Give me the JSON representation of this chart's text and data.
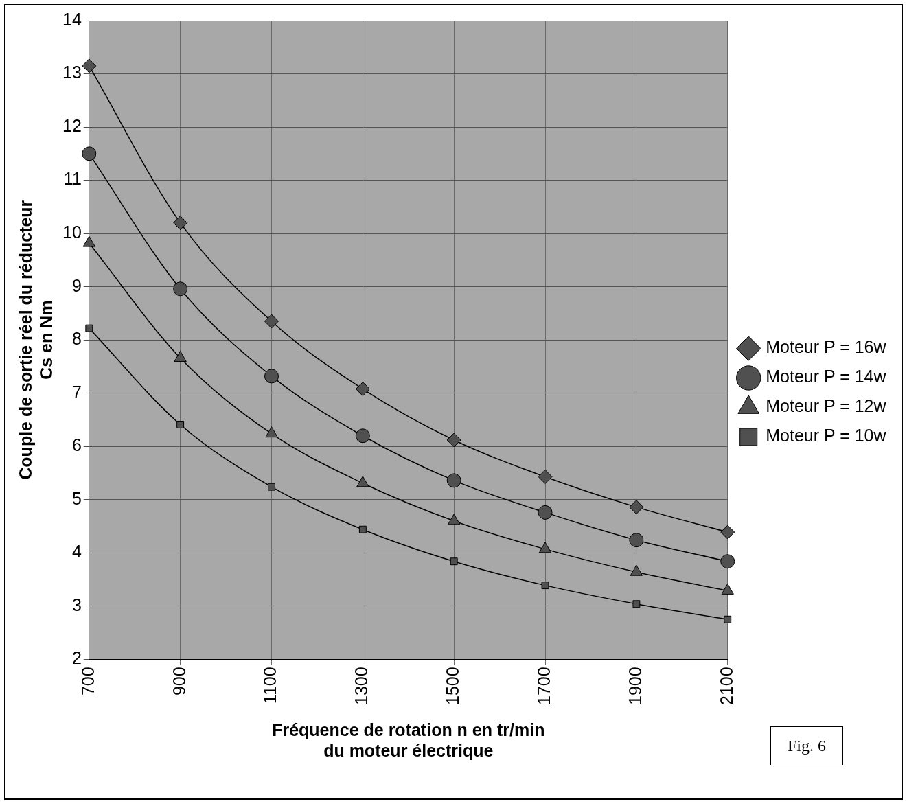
{
  "chart_data": {
    "type": "line",
    "xlabel": "Fréquence de rotation n en tr/min\ndu moteur électrique",
    "ylabel": "Couple de sortie réel du réducteur\nCs en Nm",
    "categories": [
      "700",
      "900",
      "1100",
      "1300",
      "1500",
      "1700",
      "1900",
      "2100"
    ],
    "series": [
      {
        "name": "Moteur P = 16w",
        "color": "#000000",
        "marker": "diamond",
        "values": [
          13.15,
          10.2,
          8.35,
          7.08,
          6.12,
          5.43,
          4.86,
          4.39
        ]
      },
      {
        "name": "Moteur P = 14w",
        "color": "#000000",
        "marker": "circle",
        "values": [
          11.5,
          8.96,
          7.32,
          6.2,
          5.36,
          4.76,
          4.24,
          3.84
        ]
      },
      {
        "name": "Moteur P = 12w",
        "color": "#000000",
        "marker": "triangle",
        "values": [
          9.82,
          7.66,
          6.24,
          5.31,
          4.6,
          4.07,
          3.64,
          3.29
        ]
      },
      {
        "name": "Moteur P = 10w",
        "color": "#000000",
        "marker": "square",
        "values": [
          8.22,
          6.41,
          5.24,
          4.44,
          3.84,
          3.39,
          3.04,
          2.75
        ]
      }
    ],
    "ylim": [
      2,
      14
    ],
    "yticks": [
      2,
      3,
      4,
      5,
      6,
      7,
      8,
      9,
      10,
      11,
      12,
      13,
      14
    ],
    "grid": true,
    "legend": "right",
    "annotations": [
      "Fig. 6"
    ]
  }
}
